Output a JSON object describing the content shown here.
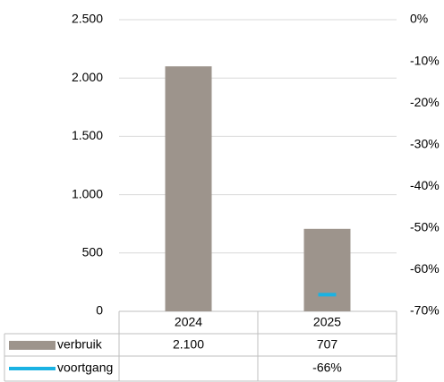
{
  "chart_data": {
    "type": "bar",
    "categories": [
      "2024",
      "2025"
    ],
    "series": [
      {
        "name": "verbruik",
        "color": "#9d948c",
        "values": [
          2100,
          707
        ],
        "value_labels": [
          "2.100",
          "707"
        ]
      },
      {
        "name": "voortgang",
        "color": "#1ab2e3",
        "values": [
          null,
          -66
        ],
        "value_labels": [
          null,
          "-66%"
        ],
        "axis": "y2",
        "type": "line"
      }
    ],
    "ylim": [
      0,
      2500
    ],
    "yticks": [
      0,
      500,
      {
        "value": 1000,
        "label": "1.000"
      },
      {
        "value": 1500,
        "label": "1.500"
      },
      {
        "value": 2000,
        "label": "2.000"
      },
      {
        "value": 2500,
        "label": "2.500"
      }
    ],
    "y2lim": [
      -70,
      0
    ],
    "y2ticks": [
      {
        "value": 0,
        "label": "0%"
      },
      {
        "value": -10,
        "label": "-10%"
      },
      {
        "value": -20,
        "label": "-20%"
      },
      {
        "value": -30,
        "label": "-30%"
      },
      {
        "value": -40,
        "label": "-40%"
      },
      {
        "value": -50,
        "label": "-50%"
      },
      {
        "value": -60,
        "label": "-60%"
      },
      {
        "value": -70,
        "label": "-70%"
      }
    ],
    "grid": true
  }
}
